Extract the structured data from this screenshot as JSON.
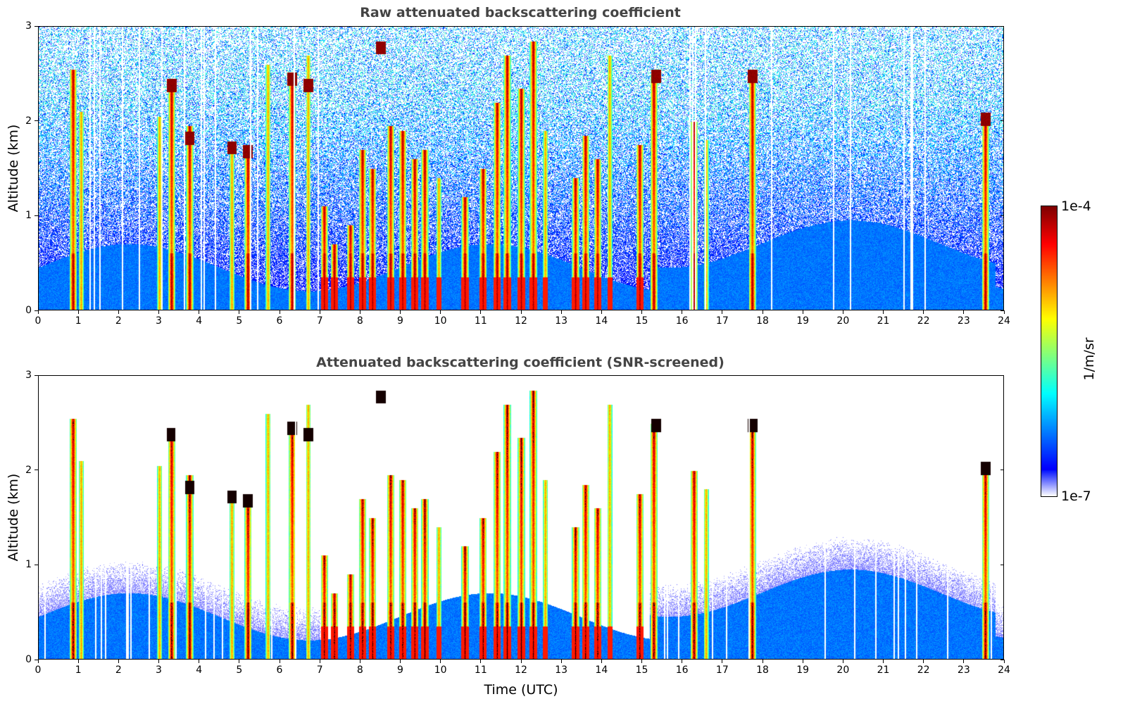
{
  "chart_data": [
    {
      "type": "heatmap",
      "title": "Raw attenuated backscattering coefficient",
      "xlabel": "",
      "ylabel": "Altitude (km)",
      "xlim": [
        0,
        24
      ],
      "ylim": [
        0,
        3
      ],
      "x_ticks": [
        "0",
        "1",
        "2",
        "3",
        "4",
        "5",
        "6",
        "7",
        "8",
        "9",
        "10",
        "11",
        "12",
        "13",
        "14",
        "15",
        "16",
        "17",
        "18",
        "19",
        "20",
        "21",
        "22",
        "23",
        "24"
      ],
      "y_ticks": [
        "0",
        "1",
        "2",
        "3"
      ],
      "grid": false,
      "screened": false
    },
    {
      "type": "heatmap",
      "title": "Attenuated backscattering coefficient (SNR-screened)",
      "xlabel": "Time (UTC)",
      "ylabel": "Altitude (km)",
      "xlim": [
        0,
        24
      ],
      "ylim": [
        0,
        3
      ],
      "x_ticks": [
        "0",
        "1",
        "2",
        "3",
        "4",
        "5",
        "6",
        "7",
        "8",
        "9",
        "10",
        "11",
        "12",
        "13",
        "14",
        "15",
        "16",
        "17",
        "18",
        "19",
        "20",
        "21",
        "22",
        "23",
        "24"
      ],
      "y_ticks": [
        "0",
        "1",
        "2",
        "3"
      ],
      "grid": false,
      "screened": true
    }
  ],
  "colorbar": {
    "label": "1/m/sr",
    "max_label": "1e-4",
    "min_label": "1e-7",
    "colormap": "jet",
    "scale": "log"
  },
  "colors": {
    "title": "#444444",
    "background": "#ffffff"
  },
  "features": {
    "cloud_towers": [
      {
        "t": 0.85,
        "top": 2.55,
        "dense": true
      },
      {
        "t": 1.05,
        "top": 2.1,
        "dense": false
      },
      {
        "t": 3.0,
        "top": 2.05,
        "dense": false
      },
      {
        "t": 3.3,
        "top": 2.45,
        "dense": true
      },
      {
        "t": 3.75,
        "top": 1.95,
        "dense": true
      },
      {
        "t": 4.8,
        "top": 1.75,
        "dense": false
      },
      {
        "t": 5.2,
        "top": 1.7,
        "dense": true
      },
      {
        "t": 5.7,
        "top": 2.6,
        "dense": false
      },
      {
        "t": 6.3,
        "top": 2.5,
        "dense": true
      },
      {
        "t": 6.7,
        "top": 2.7,
        "dense": false
      },
      {
        "t": 7.1,
        "top": 1.1,
        "dense": true
      },
      {
        "t": 7.35,
        "top": 0.7,
        "dense": true
      },
      {
        "t": 7.75,
        "top": 0.9,
        "dense": true
      },
      {
        "t": 8.05,
        "top": 1.7,
        "dense": true
      },
      {
        "t": 8.3,
        "top": 1.5,
        "dense": true
      },
      {
        "t": 8.75,
        "top": 1.95,
        "dense": true
      },
      {
        "t": 9.05,
        "top": 1.9,
        "dense": true
      },
      {
        "t": 9.35,
        "top": 1.6,
        "dense": true
      },
      {
        "t": 9.6,
        "top": 1.7,
        "dense": true
      },
      {
        "t": 9.95,
        "top": 1.4,
        "dense": false
      },
      {
        "t": 10.6,
        "top": 1.2,
        "dense": true
      },
      {
        "t": 11.05,
        "top": 1.5,
        "dense": true
      },
      {
        "t": 11.4,
        "top": 2.2,
        "dense": true
      },
      {
        "t": 11.65,
        "top": 2.7,
        "dense": true
      },
      {
        "t": 12.0,
        "top": 2.35,
        "dense": true
      },
      {
        "t": 12.3,
        "top": 2.85,
        "dense": true
      },
      {
        "t": 12.6,
        "top": 1.9,
        "dense": false
      },
      {
        "t": 13.35,
        "top": 1.4,
        "dense": true
      },
      {
        "t": 13.6,
        "top": 1.85,
        "dense": true
      },
      {
        "t": 13.9,
        "top": 1.6,
        "dense": true
      },
      {
        "t": 14.2,
        "top": 2.7,
        "dense": false
      },
      {
        "t": 14.95,
        "top": 1.75,
        "dense": true
      },
      {
        "t": 15.3,
        "top": 2.5,
        "dense": true
      },
      {
        "t": 16.3,
        "top": 2.0,
        "dense": true
      },
      {
        "t": 16.6,
        "top": 1.8,
        "dense": false
      },
      {
        "t": 17.75,
        "top": 2.5,
        "dense": true
      },
      {
        "t": 23.55,
        "top": 2.05,
        "dense": true
      }
    ],
    "cloud_patches": [
      {
        "t": 3.3,
        "z": 2.38
      },
      {
        "t": 3.75,
        "z": 1.82
      },
      {
        "t": 4.8,
        "z": 1.72
      },
      {
        "t": 5.2,
        "z": 1.68
      },
      {
        "t": 6.3,
        "z": 2.45
      },
      {
        "t": 6.7,
        "z": 2.38
      },
      {
        "t": 8.5,
        "z": 2.78
      },
      {
        "t": 15.35,
        "z": 2.48
      },
      {
        "t": 17.75,
        "z": 2.48
      },
      {
        "t": 23.55,
        "z": 2.02
      }
    ]
  }
}
